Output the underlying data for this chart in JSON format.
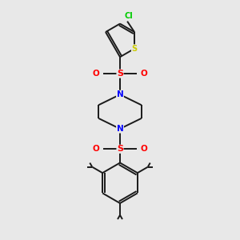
{
  "background_color": "#e8e8e8",
  "bond_color": "#1a1a1a",
  "atom_colors": {
    "N": "#0000ff",
    "O": "#ff0000",
    "S_thio": "#cccc00",
    "S_sulf": "#ff0000",
    "Cl": "#00cc00"
  },
  "figsize": [
    3.0,
    3.0
  ],
  "dpi": 100,
  "xlim": [
    0,
    6
  ],
  "ylim": [
    0,
    10
  ]
}
